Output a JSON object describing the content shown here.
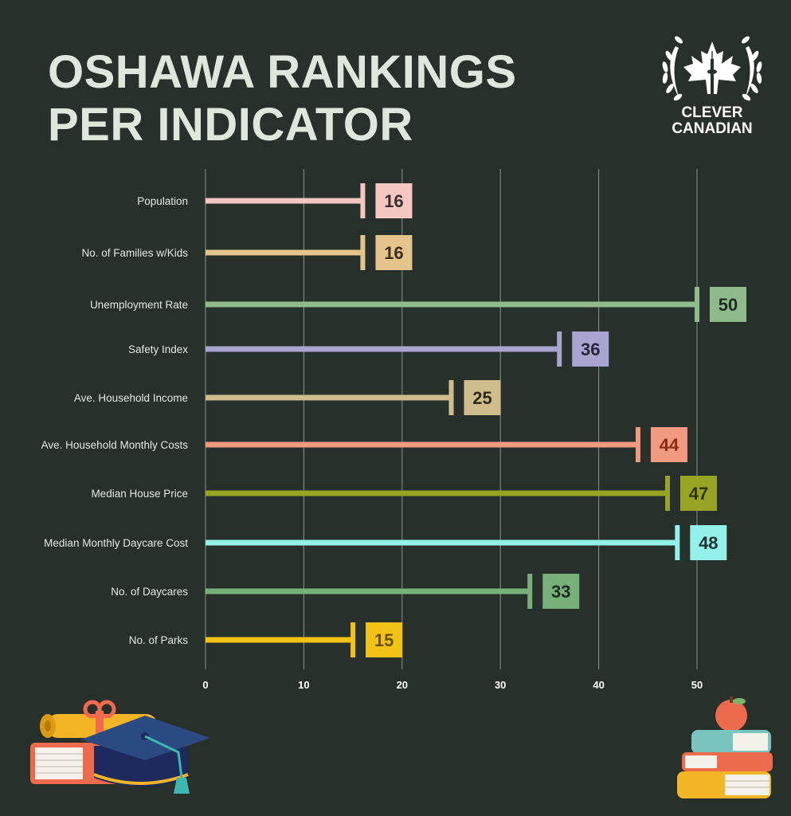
{
  "header": {
    "title_line1": "OSHAWA RANKINGS",
    "title_line2": "PER INDICATOR"
  },
  "logo": {
    "line1": "CLEVER",
    "line2": "CANADIAN"
  },
  "chart_data": {
    "type": "bar",
    "orientation": "horizontal",
    "categories": [
      "Population",
      "No. of Families w/Kids",
      "Unemployment Rate",
      "Safety Index",
      "Ave. Household Income",
      "Ave. Household Monthly Costs",
      "Median House Price",
      "Median Monthly Daycare Cost",
      "No. of Daycares",
      "No. of Parks"
    ],
    "values": [
      16,
      16,
      50,
      36,
      25,
      44,
      47,
      48,
      33,
      15
    ],
    "colors": [
      "#f4c7c3",
      "#e3c48b",
      "#8fba8c",
      "#a8a6d0",
      "#cfbe8c",
      "#f29a80",
      "#98a524",
      "#94f1ea",
      "#78b07a",
      "#f2c215"
    ],
    "label_text_colors": [
      "#3a2e2e",
      "#3a2e1e",
      "#1f2d20",
      "#262638",
      "#2f2a1e",
      "#8a2a18",
      "#2f3510",
      "#1e3332",
      "#1f2d20",
      "#6a5000"
    ],
    "xticks": [
      0,
      10,
      20,
      30,
      40,
      50
    ],
    "xlim": [
      0,
      54
    ],
    "grid": true,
    "title": "OSHAWA RANKINGS PER INDICATOR",
    "xlabel": "",
    "ylabel": ""
  },
  "decor": {
    "left_icon": "graduation-cap-books-icon",
    "right_icon": "book-stack-apple-icon"
  }
}
